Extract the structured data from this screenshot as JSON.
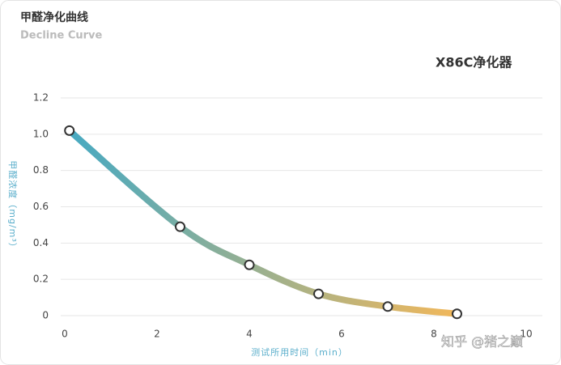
{
  "chart_data": {
    "type": "line",
    "title": "甲醛净化曲线",
    "subtitle": "Decline Curve",
    "x_label": "测试所用时间（min）",
    "y_label": "甲醛浓度（mg/m³）",
    "x": [
      0.1,
      2.5,
      4,
      5.5,
      7,
      8.5
    ],
    "series": [
      {
        "name": "X86C净化器",
        "color": [
          "#45a9c3",
          "#f7b857"
        ],
        "values": [
          1.02,
          0.49,
          0.28,
          0.12,
          0.05,
          0.01
        ]
      }
    ],
    "xlim": [
      0,
      10
    ],
    "xticks": [
      0,
      2,
      4,
      6,
      8,
      10
    ],
    "ylim": [
      0,
      1.2
    ],
    "yticks": [
      0,
      0.2,
      0.4,
      0.6,
      0.8,
      {
        "value": 1,
        "label": "1.0"
      },
      1.2
    ],
    "grid": true,
    "legend": "top-right",
    "watermark": "知乎 @猪之巅"
  }
}
